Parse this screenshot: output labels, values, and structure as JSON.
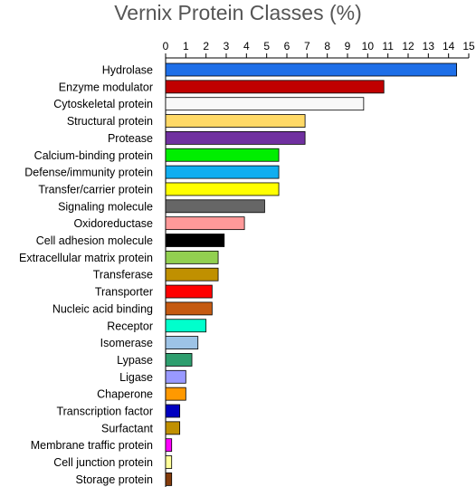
{
  "chart_data": {
    "type": "bar",
    "orientation": "horizontal",
    "title": "Vernix Protein Classes (%)",
    "xlabel": "",
    "ylabel": "",
    "xlim": [
      0,
      15
    ],
    "xticks": [
      0,
      1,
      2,
      3,
      4,
      5,
      6,
      7,
      8,
      9,
      10,
      11,
      12,
      13,
      14,
      15
    ],
    "axis_position": "top",
    "grid": false,
    "categories": [
      "Hydrolase",
      "Enzyme modulator",
      "Cytoskeletal protein",
      "Structural protein",
      "Protease",
      "Calcium-binding protein",
      "Defense/immunity protein",
      "Transfer/carrier protein",
      "Signaling molecule",
      "Oxidoreductase",
      "Cell adhesion molecule",
      "Extracellular matrix protein",
      "Transferase",
      "Transporter",
      "Nucleic acid binding",
      "Receptor",
      "Isomerase",
      "Lypase",
      "Ligase",
      "Chaperone",
      "Transcription factor",
      "Surfactant",
      "Membrane traffic protein",
      "Cell junction protein",
      "Storage protein"
    ],
    "values": [
      14.4,
      10.8,
      9.8,
      6.9,
      6.9,
      5.6,
      5.6,
      5.6,
      4.9,
      3.9,
      2.9,
      2.6,
      2.6,
      2.3,
      2.3,
      2.0,
      1.6,
      1.3,
      1.0,
      1.0,
      0.7,
      0.7,
      0.3,
      0.3,
      0.3
    ],
    "colors": [
      "#1e6fe8",
      "#c00000",
      "#f8f8f8",
      "#ffd966",
      "#7030a0",
      "#00ee00",
      "#10aef0",
      "#ffff00",
      "#666666",
      "#ff9999",
      "#000000",
      "#92d050",
      "#c09000",
      "#ff0000",
      "#c55a11",
      "#00ffcc",
      "#9dc3e6",
      "#2e9e6e",
      "#9999ff",
      "#ff9900",
      "#0000c0",
      "#c09000",
      "#ff00ff",
      "#ffff99",
      "#843c0c"
    ]
  }
}
